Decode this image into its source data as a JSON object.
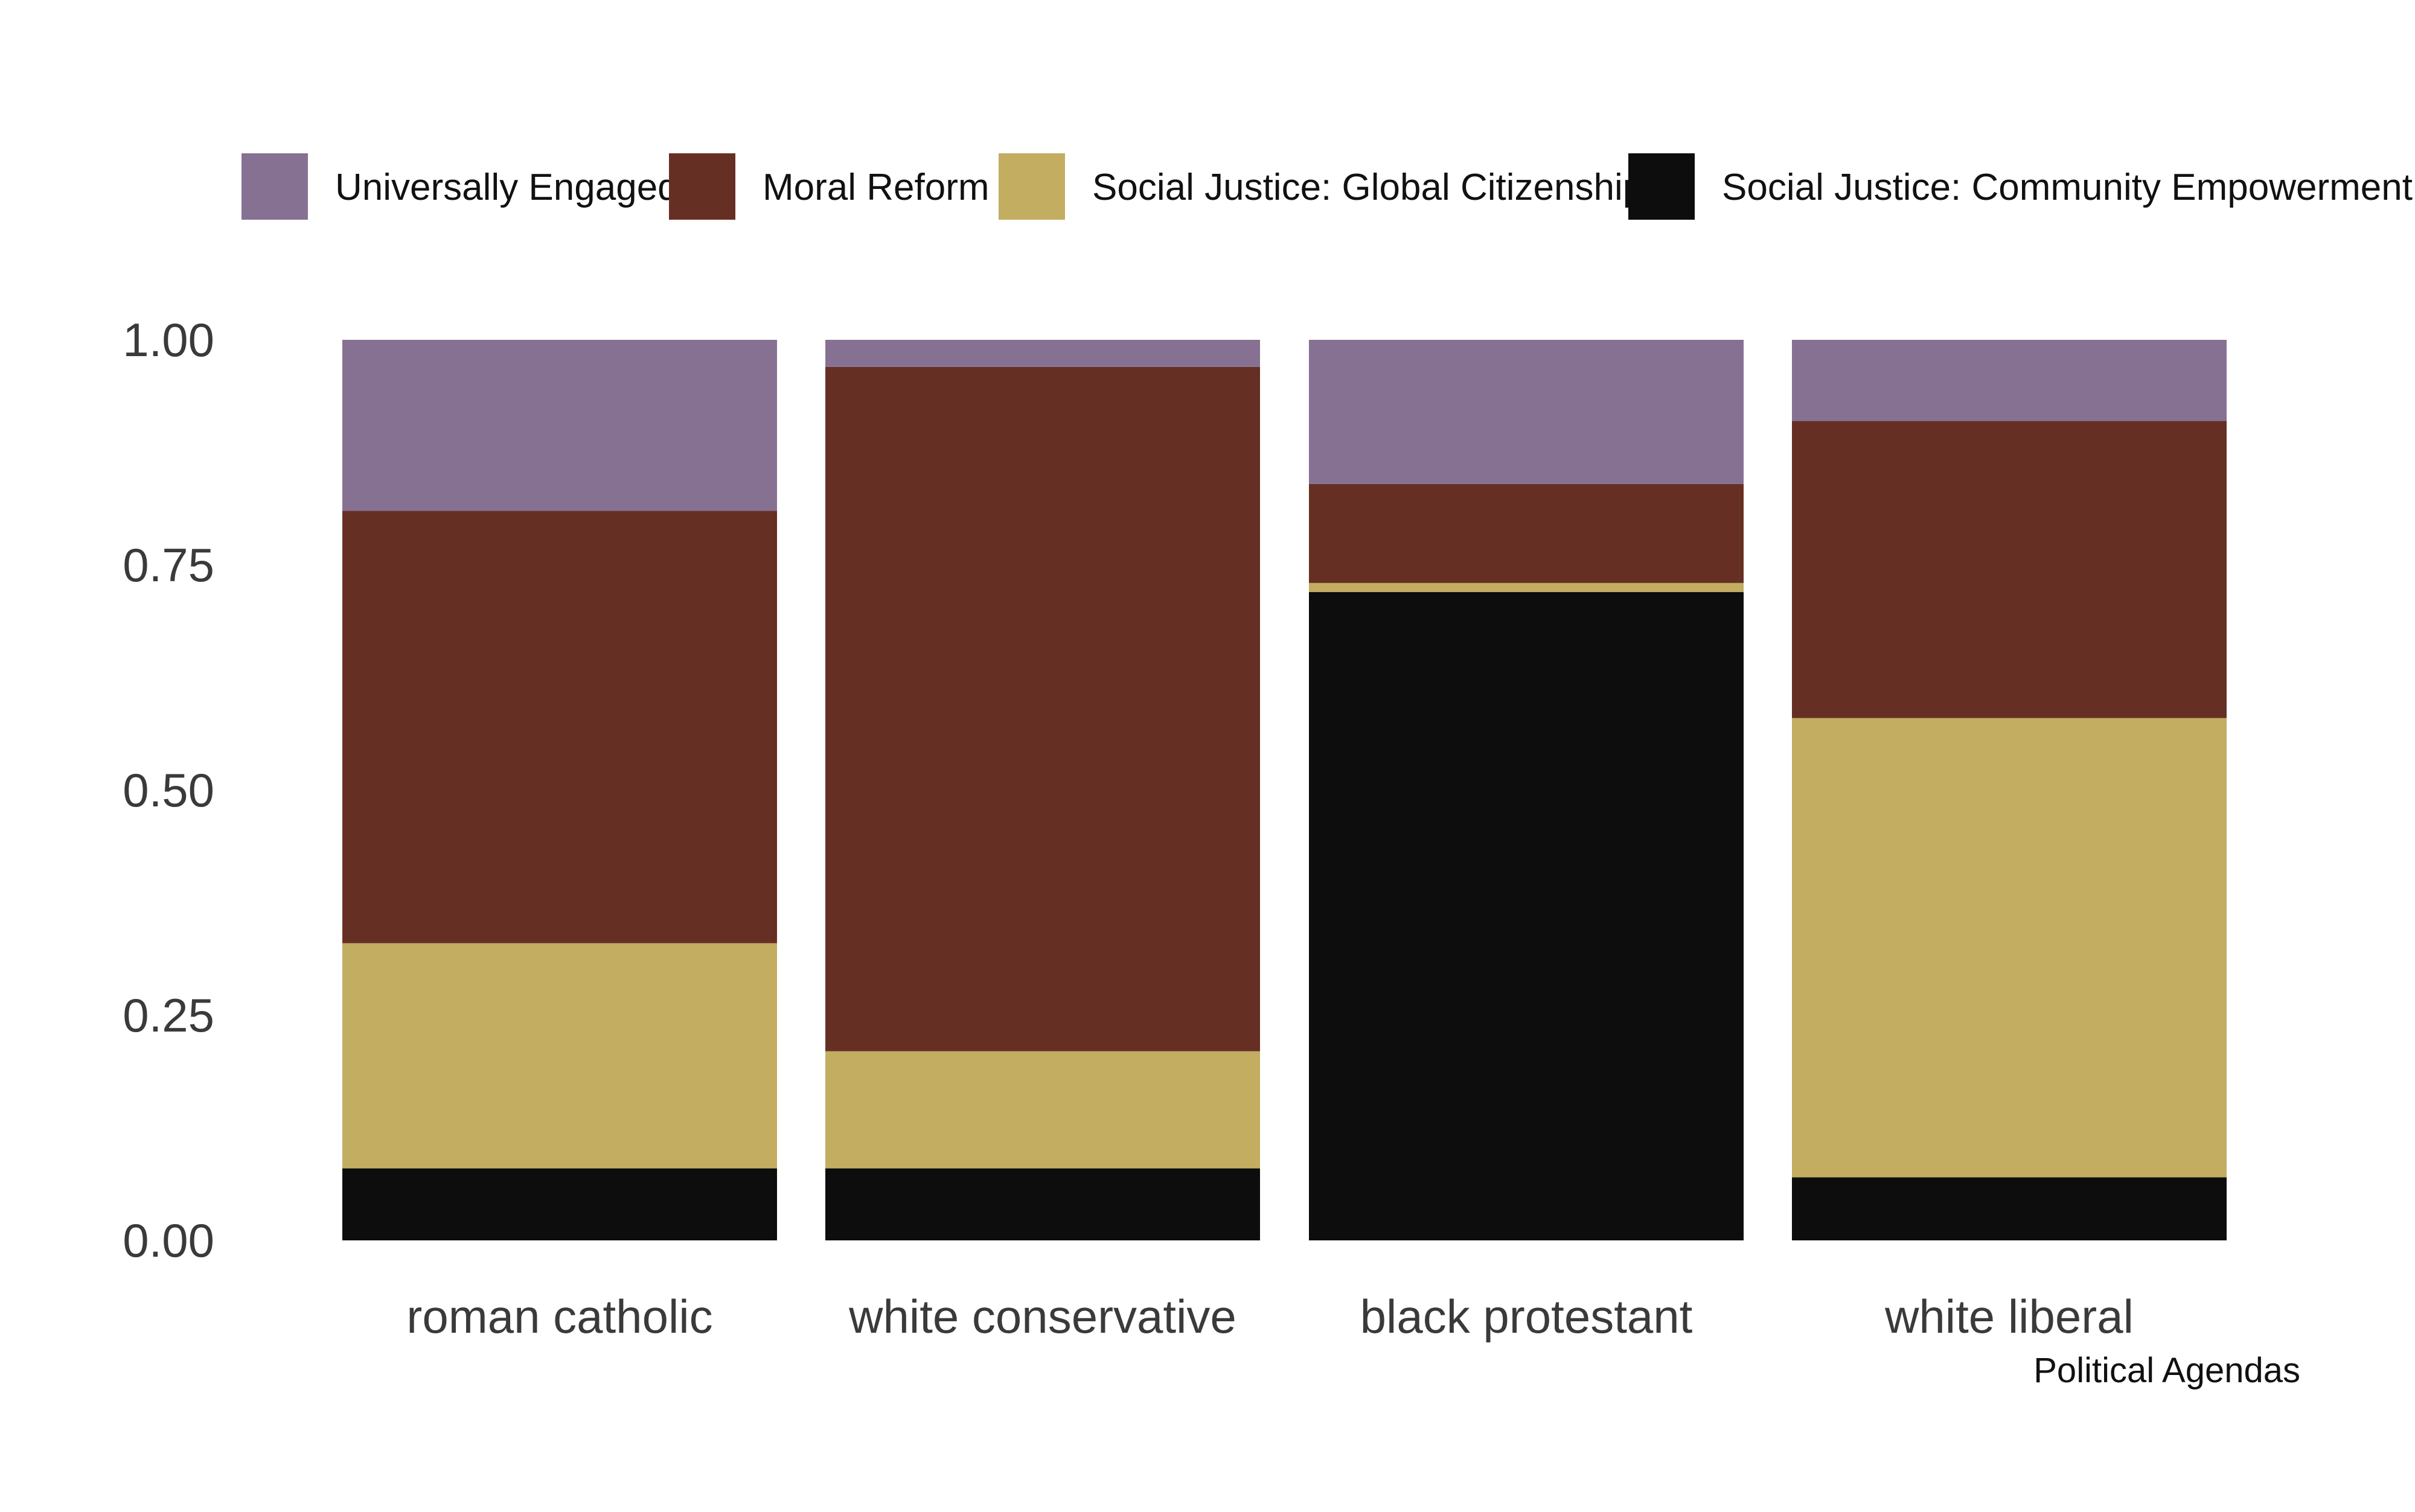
{
  "chart_data": {
    "type": "bar",
    "stacked": true,
    "categories": [
      "roman catholic",
      "white conservative",
      "black protestant",
      "white liberal"
    ],
    "series": [
      {
        "name": "Social Justice: Community Empowerment",
        "color": "#0d0d0d",
        "values": [
          0.08,
          0.08,
          0.72,
          0.07
        ]
      },
      {
        "name": "Social Justice: Global Citizenship",
        "color": "#c2ad61",
        "values": [
          0.25,
          0.13,
          0.01,
          0.51
        ]
      },
      {
        "name": "Moral Reform",
        "color": "#662f24",
        "values": [
          0.48,
          0.76,
          0.11,
          0.33
        ]
      },
      {
        "name": "Universally Engaged",
        "color": "#877193",
        "values": [
          0.19,
          0.03,
          0.16,
          0.09
        ]
      }
    ],
    "legend_order": [
      "Universally Engaged",
      "Moral Reform",
      "Social Justice: Global Citizenship",
      "Social Justice: Community Empowerment"
    ],
    "legend_position": "top",
    "ylim": [
      0,
      1
    ],
    "yticks": [
      0,
      0.25,
      0.5,
      0.75,
      1
    ],
    "ytick_labels": [
      "0.00",
      "0.25",
      "0.50",
      "0.75",
      "1.00"
    ],
    "grid": false,
    "caption": "Political Agendas",
    "title": "",
    "xlabel": "",
    "ylabel": ""
  }
}
